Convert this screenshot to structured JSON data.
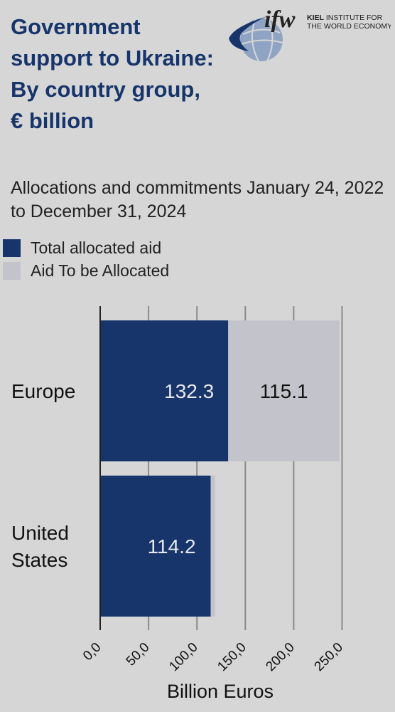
{
  "header": {
    "title": "Government support to Ukraine: By country group, € billion",
    "subtitle": "Allocations and commitments January 24, 2022 to December 31, 2024"
  },
  "logo": {
    "mark": "ifw",
    "line1_bold": "KIEL",
    "line1_rest": " INSTITUTE FOR",
    "line2": "THE WORLD ECONOMY"
  },
  "legend": {
    "items": [
      {
        "label": "Total allocated aid",
        "color": "#17356b"
      },
      {
        "label": "Aid To be Allocated",
        "color": "#c3c4cb"
      }
    ]
  },
  "colors": {
    "allocated": "#17356b",
    "to_be_allocated": "#c3c4cb",
    "gridline": "#8a8a8a",
    "axis": "#222222",
    "background": "#d6d6d6"
  },
  "chart_data": {
    "type": "bar",
    "orientation": "horizontal",
    "stacked": true,
    "categories": [
      "Europe",
      "United States"
    ],
    "series": [
      {
        "name": "Total allocated aid",
        "values": [
          132.3,
          114.2
        ],
        "labels": [
          "132.3",
          "114.2"
        ]
      },
      {
        "name": "Aid To be Allocated",
        "values": [
          115.1,
          4.6
        ],
        "labels": [
          "115.1",
          ""
        ]
      }
    ],
    "xlabel": "Billion Euros",
    "xlim": [
      0,
      250
    ],
    "xticks": [
      0,
      50,
      100,
      150,
      200,
      250
    ],
    "xtick_labels": [
      "0,0",
      "50,0",
      "100,0",
      "150,0",
      "200,0",
      "250,0"
    ],
    "grid": true
  }
}
